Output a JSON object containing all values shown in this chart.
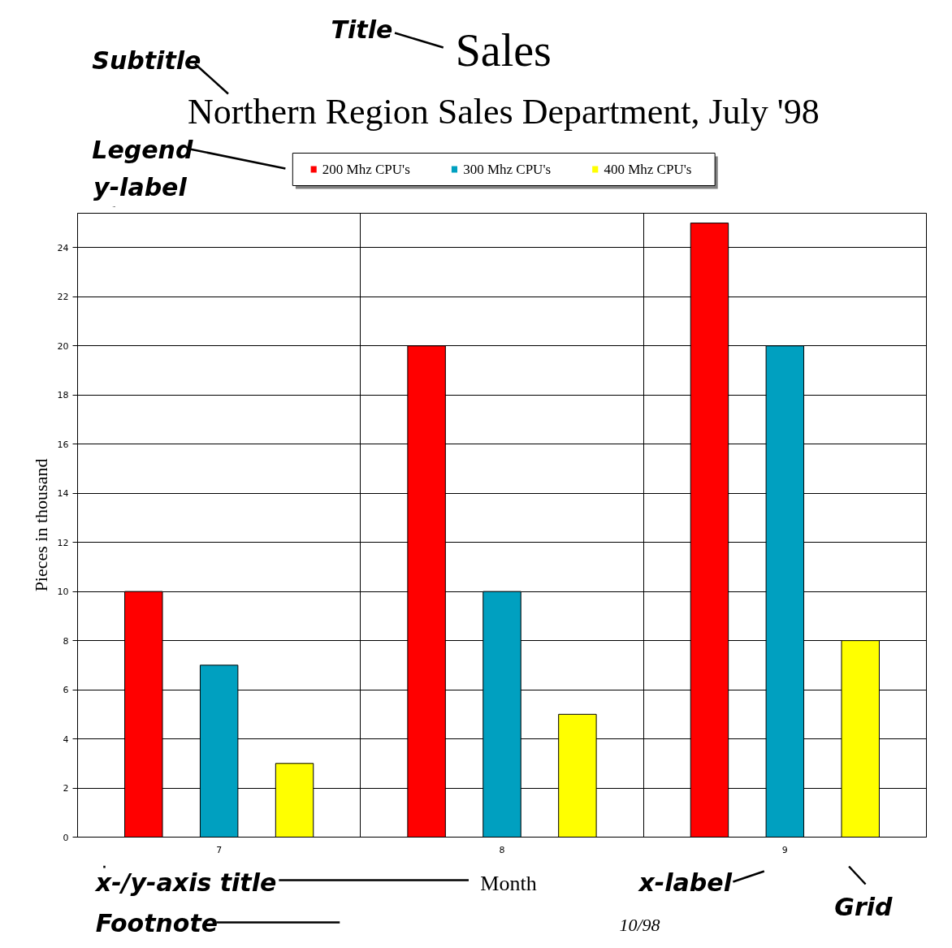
{
  "chart_data": {
    "type": "bar",
    "title": "Sales",
    "subtitle": "Northern Region Sales Department, July '98",
    "xlabel": "Month",
    "ylabel": "Pieces in thousand",
    "categories": [
      "7",
      "8",
      "9"
    ],
    "series": [
      {
        "name": "200 Mhz CPU's",
        "color": "#ff0000",
        "values": [
          10,
          20,
          25
        ]
      },
      {
        "name": "300 Mhz CPU's",
        "color": "#00a0c0",
        "values": [
          7,
          10,
          20
        ]
      },
      {
        "name": "400 Mhz CPU's",
        "color": "#ffff00",
        "values": [
          3,
          5,
          8
        ]
      }
    ],
    "ylim": [
      0,
      25.4
    ],
    "yticks": [
      0,
      2,
      4,
      6,
      8,
      10,
      12,
      14,
      16,
      18,
      20,
      22,
      24
    ],
    "grid": true,
    "legend": "top",
    "annotations": [
      "Title",
      "Subtitle",
      "Legend",
      "y-label",
      "x-/y-axis title",
      "Footnote",
      "x-label",
      "Grid",
      "10/98"
    ]
  }
}
